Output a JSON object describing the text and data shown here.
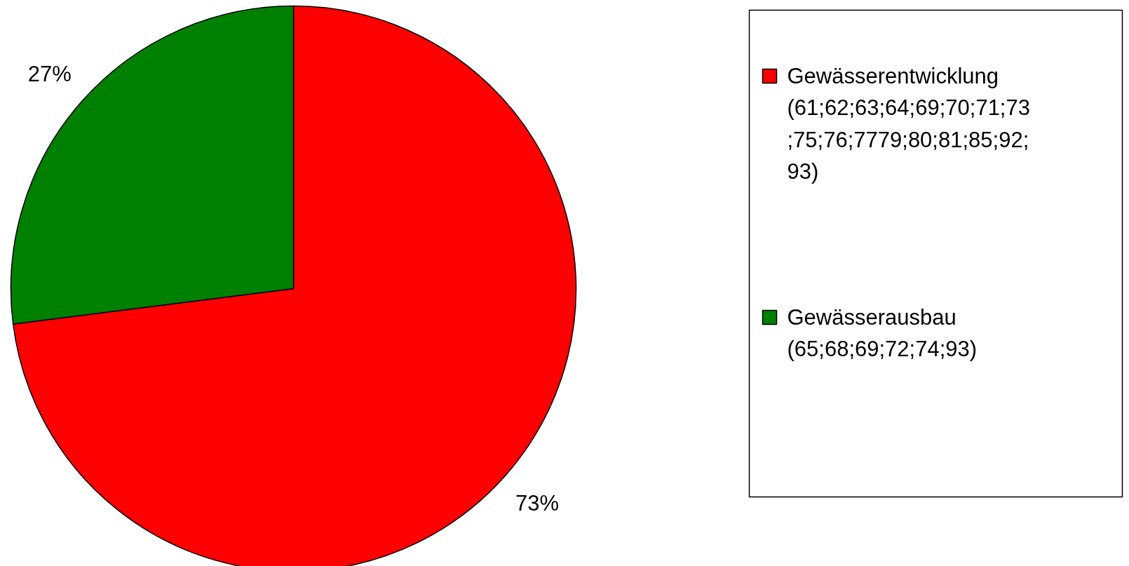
{
  "chart_data": {
    "type": "pie",
    "categories": [
      "Gewässerentwicklung (61;62;63;64;69;70;71;73;75;76;7779;80;81;85;92;93)",
      "Gewässerausbau (65;68;69;72;74;93)"
    ],
    "values": [
      73,
      27
    ],
    "colors": [
      "#ff0000",
      "#008000"
    ],
    "value_labels": [
      "73%",
      "27%"
    ],
    "legend": "right"
  }
}
